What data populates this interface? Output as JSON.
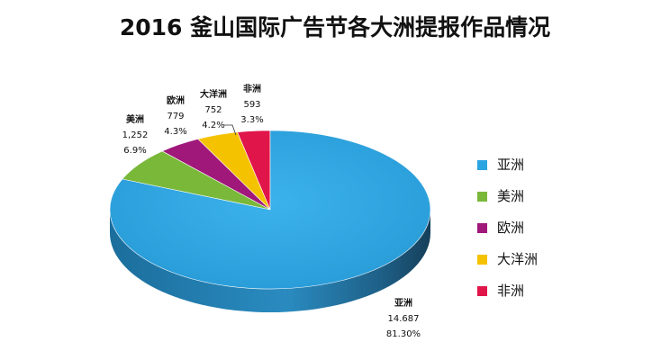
{
  "chart_data": {
    "type": "pie",
    "title": "2016 釜山国际广告节各大洲提报作品情况",
    "categories": [
      "亚洲",
      "美洲",
      "欧洲",
      "大洋洲",
      "非洲"
    ],
    "values": [
      14687,
      1252,
      779,
      752,
      593
    ],
    "value_labels": [
      "14.687",
      "1,252",
      "779",
      "752",
      "593"
    ],
    "percent_labels": [
      "81.30%",
      "6.9%",
      "4.3%",
      "4.2%",
      "3.3%"
    ],
    "colors": [
      "#2AA5E2",
      "#7AB83A",
      "#A0187A",
      "#F5C200",
      "#E0154A"
    ],
    "legend_position": "right",
    "three_d": true
  }
}
